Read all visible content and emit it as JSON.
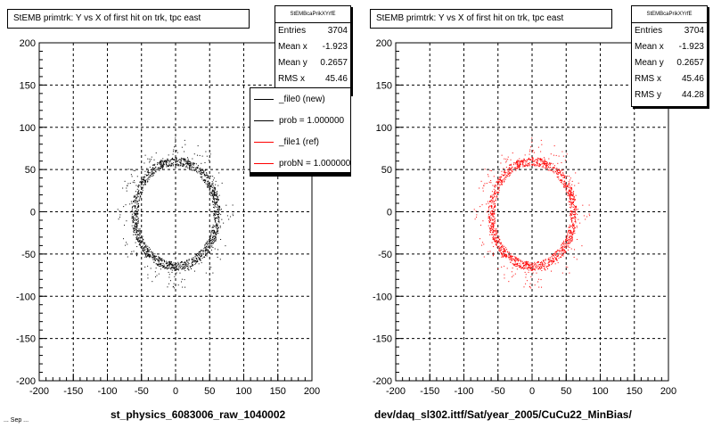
{
  "chart_data": [
    {
      "type": "scatter",
      "title": "StEMB primtrk: Y vs X of first hit on trk, tpc east",
      "xlabel": "st_physics_6083006_raw_1040002",
      "ylabel": "",
      "xlim": [
        -200,
        200
      ],
      "ylim": [
        -200,
        200
      ],
      "xticks": [
        -200,
        -150,
        -100,
        -50,
        0,
        50,
        100,
        150,
        200
      ],
      "yticks": [
        -200,
        -150,
        -100,
        -50,
        0,
        50,
        100,
        150,
        200
      ],
      "grid": true,
      "point_color": "#000000",
      "ring": {
        "center_x": 0,
        "center_y": -2,
        "radius_x": 60,
        "radius_y": 62
      },
      "stats": {
        "name": "StEMBcaPrikXYrfE",
        "entries_label": "Entries",
        "entries": "3704",
        "meanx_label": "Mean x",
        "meanx": "-1.923",
        "meany_label": "Mean y",
        "meany": "0.2657",
        "rmsx_label": "RMS x",
        "rmsx": "45.46"
      },
      "legend": {
        "placement": "top-right",
        "entries": [
          {
            "label": "_file0 (new)",
            "color": "#000000"
          },
          {
            "label": "prob = 1.000000",
            "color": "#000000"
          },
          {
            "label": "_file1 (ref)",
            "color": "#ff0000"
          },
          {
            "label": "probN = 1.000000",
            "color": "#ff0000"
          }
        ]
      }
    },
    {
      "type": "scatter",
      "title": "StEMB primtrk: Y vs X of first hit on trk, tpc east",
      "xlabel": "dev/daq_sl302.ittf/Sat/year_2005/CuCu22_MinBias/",
      "ylabel": "",
      "xlim": [
        -200,
        200
      ],
      "ylim": [
        -200,
        200
      ],
      "xticks": [
        -200,
        -150,
        -100,
        -50,
        0,
        50,
        100,
        150,
        200
      ],
      "yticks": [
        -200,
        -150,
        -100,
        -50,
        0,
        50,
        100,
        150,
        200
      ],
      "grid": true,
      "point_color": "#ff0000",
      "ring": {
        "center_x": 0,
        "center_y": -2,
        "radius_x": 60,
        "radius_y": 62
      },
      "stats": {
        "name": "StEMBcaPrikXYrfE",
        "entries_label": "Entries",
        "entries": "3704",
        "meanx_label": "Mean x",
        "meanx": "-1.923",
        "meany_label": "Mean y",
        "meany": "0.2657",
        "rmsx_label": "RMS x",
        "rmsx": "45.46",
        "rmsy_label": "RMS y",
        "rmsy": "44.28"
      }
    }
  ],
  "footnote": "... Sep ..."
}
